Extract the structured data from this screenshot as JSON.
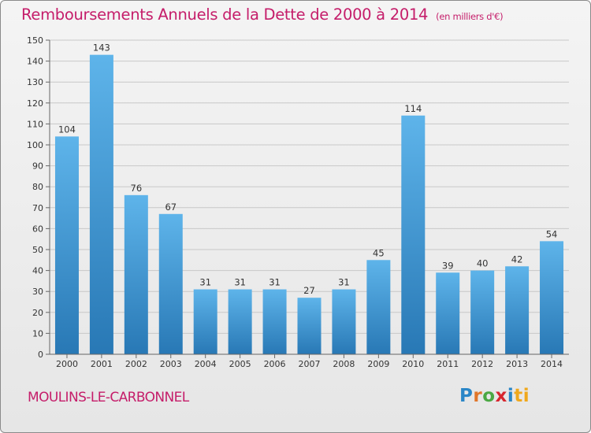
{
  "title": "Remboursements Annuels de la Dette de 2000 à 2014",
  "subtitle": "(en milliers d'€)",
  "commune": "MOULINS-LE-CARBONNEL",
  "logo": {
    "text": "Proxiti",
    "letters": [
      "P",
      "r",
      "o",
      "x",
      "i",
      "ti"
    ],
    "colors": [
      "#2a86c7",
      "#e0762a",
      "#4aa843",
      "#d7262e",
      "#2a86c7",
      "#f0a81c"
    ]
  },
  "colors": {
    "bar_top": "#5eb4ea",
    "bar_bottom": "#2878b5",
    "title": "#c51d6a",
    "grid": "#c8c8c8"
  },
  "chart_data": {
    "type": "bar",
    "categories": [
      "2000",
      "2001",
      "2002",
      "2003",
      "2004",
      "2005",
      "2006",
      "2007",
      "2008",
      "2009",
      "2010",
      "2011",
      "2012",
      "2013",
      "2014"
    ],
    "values": [
      104,
      143,
      76,
      67,
      31,
      31,
      31,
      27,
      31,
      45,
      114,
      39,
      40,
      42,
      54
    ],
    "ylim": [
      0,
      150
    ],
    "yticks": [
      0,
      10,
      20,
      30,
      40,
      50,
      60,
      70,
      80,
      90,
      100,
      110,
      120,
      130,
      140,
      150
    ],
    "grid": true,
    "title": "Remboursements Annuels de la Dette de 2000 à 2014",
    "xlabel": "",
    "ylabel": ""
  }
}
